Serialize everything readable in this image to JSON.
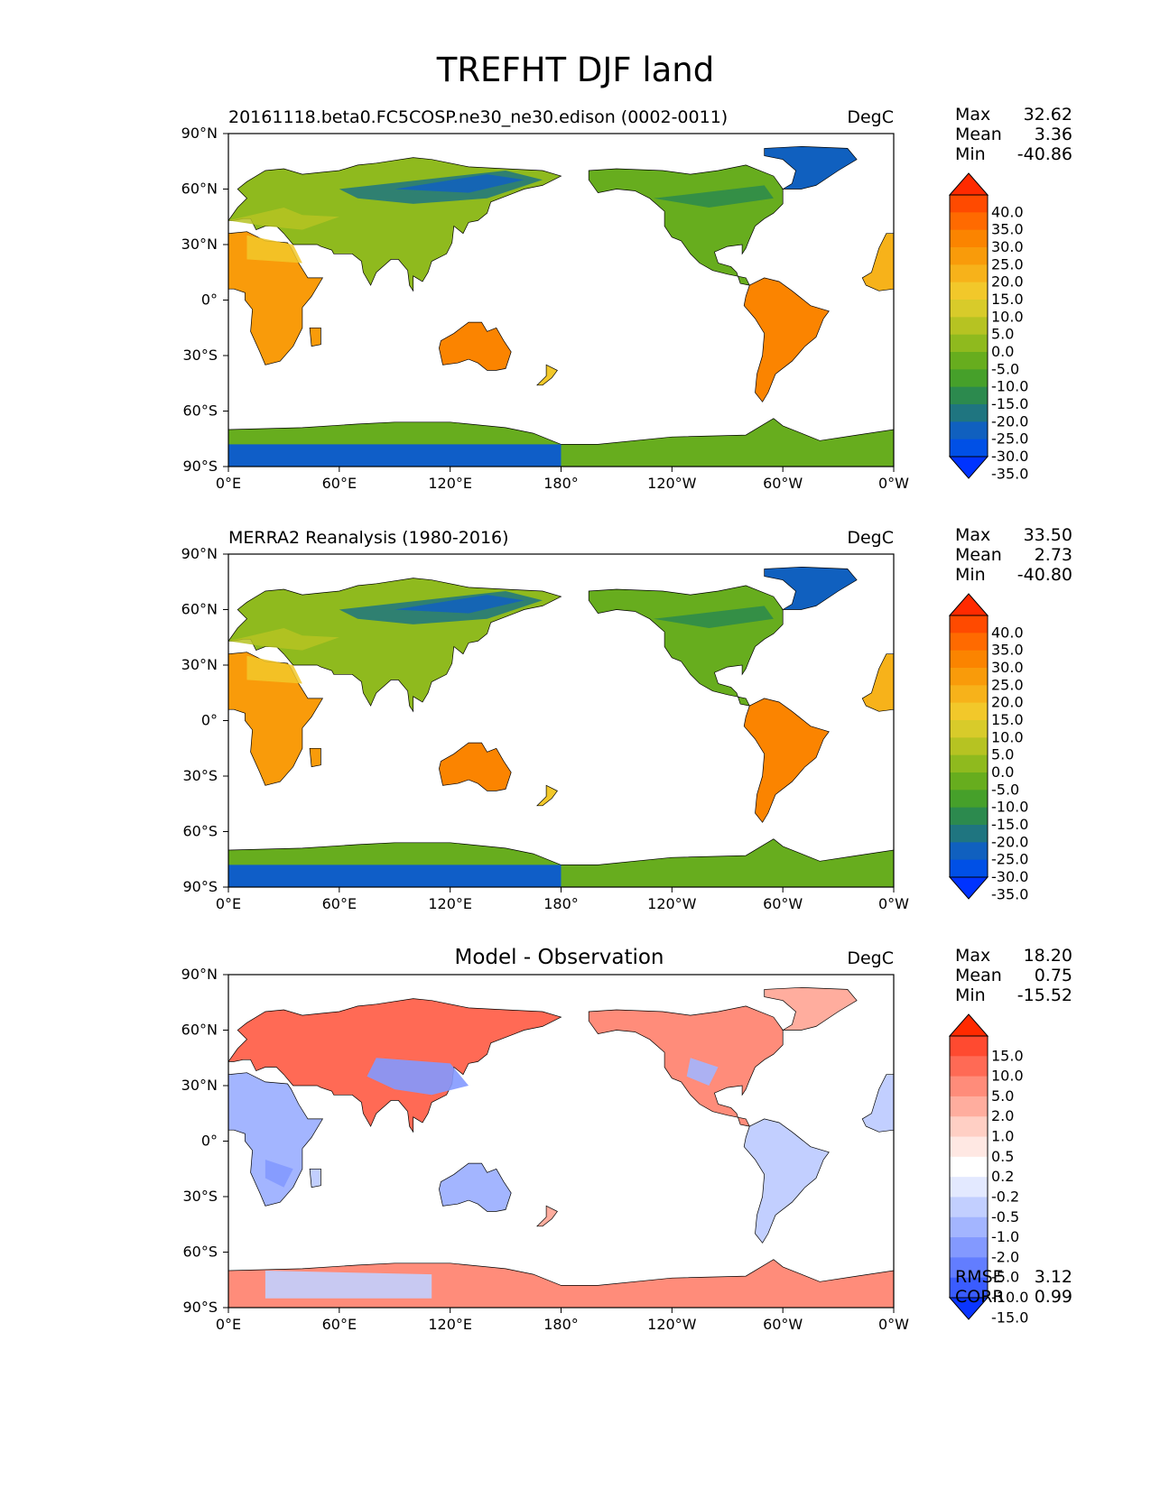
{
  "figure_title": "TREFHT DJF land",
  "panels": [
    {
      "title": "20161118.beta0.FC5COSP.ne30_ne30.edison (0002-0011)",
      "title_align": "left",
      "units": "DegC",
      "stats": [
        {
          "label": "Max",
          "value": "32.62"
        },
        {
          "label": "Mean",
          "value": "3.36"
        },
        {
          "label": "Min",
          "value": "-40.86"
        }
      ],
      "colorbar": {
        "levels": [
          "40.0",
          "35.0",
          "30.0",
          "25.0",
          "20.0",
          "15.0",
          "10.0",
          "5.0",
          "0.0",
          "-5.0",
          "-10.0",
          "-15.0",
          "-20.0",
          "-25.0",
          "-30.0",
          "-35.0"
        ],
        "colors_top_to_bottom": [
          "#ff2a00",
          "#ff4a00",
          "#ff6a00",
          "#fb8400",
          "#f99b0a",
          "#f7b21a",
          "#f2c82a",
          "#d8cb2a",
          "#b6c322",
          "#8fba1e",
          "#67ad1e",
          "#46a02a",
          "#2c8a4e",
          "#1f7580",
          "#1060bf",
          "#0050e6",
          "#0033ff"
        ]
      },
      "map_kind": "absolute"
    },
    {
      "title": "MERRA2 Reanalysis (1980-2016)",
      "title_align": "left",
      "units": "DegC",
      "stats": [
        {
          "label": "Max",
          "value": "33.50"
        },
        {
          "label": "Mean",
          "value": "2.73"
        },
        {
          "label": "Min",
          "value": "-40.80"
        }
      ],
      "colorbar": {
        "levels": [
          "40.0",
          "35.0",
          "30.0",
          "25.0",
          "20.0",
          "15.0",
          "10.0",
          "5.0",
          "0.0",
          "-5.0",
          "-10.0",
          "-15.0",
          "-20.0",
          "-25.0",
          "-30.0",
          "-35.0"
        ],
        "colors_top_to_bottom": [
          "#ff2a00",
          "#ff4a00",
          "#ff6a00",
          "#fb8400",
          "#f99b0a",
          "#f7b21a",
          "#f2c82a",
          "#d8cb2a",
          "#b6c322",
          "#8fba1e",
          "#67ad1e",
          "#46a02a",
          "#2c8a4e",
          "#1f7580",
          "#1060bf",
          "#0050e6",
          "#0033ff"
        ]
      },
      "map_kind": "absolute"
    },
    {
      "title": "Model - Observation",
      "title_align": "center",
      "units": "DegC",
      "stats": [
        {
          "label": "Max",
          "value": "18.20"
        },
        {
          "label": "Mean",
          "value": "0.75"
        },
        {
          "label": "Min",
          "value": "-15.52"
        }
      ],
      "metrics": [
        {
          "label": "RMSE",
          "value": "3.12"
        },
        {
          "label": "CORR",
          "value": "0.99"
        }
      ],
      "colorbar": {
        "levels": [
          "15.0",
          "10.0",
          "5.0",
          "2.0",
          "1.0",
          "0.5",
          "0.2",
          "-0.2",
          "-0.5",
          "-1.0",
          "-2.0",
          "-5.0",
          "-10.0",
          "-15.0"
        ],
        "colors_top_to_bottom": [
          "#ff2a00",
          "#ff4a30",
          "#ff6a55",
          "#ff8c7a",
          "#ffad9e",
          "#ffcfc4",
          "#ffe8e3",
          "#ffffff",
          "#e3e9ff",
          "#c2cfff",
          "#a3b5ff",
          "#8399ff",
          "#627dff",
          "#3a5cff",
          "#0a35ff"
        ]
      },
      "map_kind": "difference"
    }
  ],
  "axes": {
    "x_ticks": [
      "0°E",
      "60°E",
      "120°E",
      "180°",
      "120°W",
      "60°W",
      "0°W"
    ],
    "y_ticks": [
      "90°N",
      "60°N",
      "30°N",
      "0°",
      "30°S",
      "60°S",
      "90°S"
    ]
  },
  "chart_data": [
    {
      "type": "heatmap",
      "title": "20161118.beta0.FC5COSP.ne30_ne30.edison (0002-0011)",
      "variable": "TREFHT DJF land",
      "units": "DegC",
      "x_range": [
        0,
        360
      ],
      "y_range": [
        -90,
        90
      ],
      "color_levels": [
        -35,
        -30,
        -25,
        -20,
        -15,
        -10,
        -5,
        0,
        5,
        10,
        15,
        20,
        25,
        30,
        35,
        40
      ],
      "colorbar_extend": "both",
      "max": 32.62,
      "mean": 3.36,
      "min": -40.86
    },
    {
      "type": "heatmap",
      "title": "MERRA2 Reanalysis (1980-2016)",
      "variable": "TREFHT DJF land",
      "units": "DegC",
      "x_range": [
        0,
        360
      ],
      "y_range": [
        -90,
        90
      ],
      "color_levels": [
        -35,
        -30,
        -25,
        -20,
        -15,
        -10,
        -5,
        0,
        5,
        10,
        15,
        20,
        25,
        30,
        35,
        40
      ],
      "colorbar_extend": "both",
      "max": 33.5,
      "mean": 2.73,
      "min": -40.8
    },
    {
      "type": "heatmap",
      "title": "Model - Observation",
      "variable": "TREFHT DJF land",
      "units": "DegC",
      "x_range": [
        0,
        360
      ],
      "y_range": [
        -90,
        90
      ],
      "color_levels": [
        -15,
        -10,
        -5,
        -2,
        -1,
        -0.5,
        -0.2,
        0.2,
        0.5,
        1,
        2,
        5,
        10,
        15
      ],
      "colorbar_extend": "both",
      "max": 18.2,
      "mean": 0.75,
      "min": -15.52,
      "rmse": 3.12,
      "corr": 0.99
    }
  ]
}
